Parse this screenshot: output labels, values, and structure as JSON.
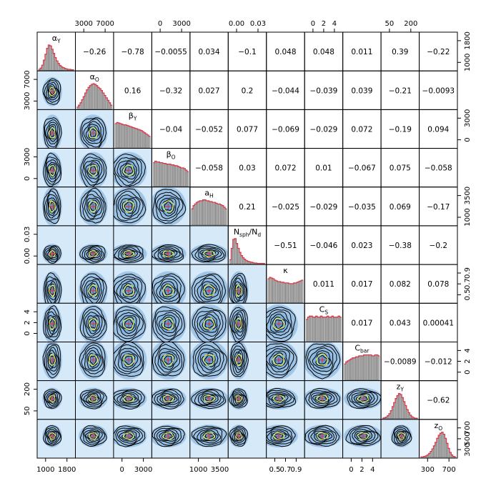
{
  "chart_data": {
    "type": "pairs-matrix",
    "variables": [
      {
        "key": "alpha_Y",
        "sym": "α",
        "sub": "Y"
      },
      {
        "key": "alpha_O",
        "sym": "α",
        "sub": "O"
      },
      {
        "key": "beta_Y",
        "sym": "β",
        "sub": "Y"
      },
      {
        "key": "beta_O",
        "sym": "β",
        "sub": "O"
      },
      {
        "key": "a_H",
        "sym": "a",
        "sub": "H"
      },
      {
        "key": "Nsph_Nd",
        "sym": "N",
        "sub": "sph",
        "tail": "/N",
        "sub2": "d"
      },
      {
        "key": "kappa",
        "sym": "κ",
        "sub": ""
      },
      {
        "key": "C_S",
        "sym": "C",
        "sub": "S"
      },
      {
        "key": "C_bar",
        "sym": "C",
        "sub": "bar"
      },
      {
        "key": "z_Y",
        "sym": "z",
        "sub": "Y"
      },
      {
        "key": "z_O",
        "sym": "z",
        "sub": "O"
      }
    ],
    "top_axis": [
      {
        "col": 1,
        "ticks": [
          "3000",
          "7000"
        ]
      },
      {
        "col": 3,
        "ticks": [
          "0",
          "3000"
        ]
      },
      {
        "col": 5,
        "ticks": [
          "0.00",
          "0.03"
        ]
      },
      {
        "col": 7,
        "ticks": [
          "0",
          "2",
          "4"
        ]
      },
      {
        "col": 9,
        "ticks": [
          "50",
          "200"
        ]
      }
    ],
    "bottom_axis": [
      {
        "col": 0,
        "ticks": [
          "1000",
          "1800"
        ]
      },
      {
        "col": 2,
        "ticks": [
          "0",
          "3000"
        ]
      },
      {
        "col": 4,
        "ticks": [
          "1000",
          "3500"
        ]
      },
      {
        "col": 6,
        "ticks": [
          "0.5",
          "0.7",
          "0.9"
        ]
      },
      {
        "col": 8,
        "ticks": [
          "0",
          "2",
          "4"
        ]
      },
      {
        "col": 10,
        "ticks": [
          "300",
          "700"
        ]
      }
    ],
    "left_axis": [
      {
        "row": 1,
        "ticks": [
          "7000",
          "3000"
        ]
      },
      {
        "row": 3,
        "ticks": [
          "3000",
          "0"
        ]
      },
      {
        "row": 5,
        "ticks": [
          "0.03",
          "0.00"
        ]
      },
      {
        "row": 7,
        "ticks": [
          "4",
          "2",
          "0"
        ]
      },
      {
        "row": 9,
        "ticks": [
          "200",
          "50"
        ]
      }
    ],
    "right_axis": [
      {
        "row": 0,
        "ticks": [
          "1800",
          "1000"
        ]
      },
      {
        "row": 2,
        "ticks": [
          "3000",
          "0"
        ]
      },
      {
        "row": 4,
        "ticks": [
          "3500",
          "1000"
        ]
      },
      {
        "row": 6,
        "ticks": [
          "0.9",
          "0.7",
          "0.5"
        ]
      },
      {
        "row": 8,
        "ticks": [
          "4",
          "2",
          "0"
        ]
      },
      {
        "row": 10,
        "ticks": [
          "700",
          "500",
          "300"
        ]
      }
    ],
    "correlations": [
      [
        null,
        "−0.26",
        "−0.78",
        "−0.0055",
        "0.034",
        "−0.1",
        "0.048",
        "0.048",
        "0.011",
        "0.39",
        "−0.22"
      ],
      [
        null,
        null,
        "0.16",
        "−0.32",
        "0.027",
        "0.2",
        "−0.044",
        "−0.039",
        "0.039",
        "−0.21",
        "−0.0093"
      ],
      [
        null,
        null,
        null,
        "−0.04",
        "−0.052",
        "0.077",
        "−0.069",
        "−0.029",
        "0.072",
        "−0.19",
        "0.094"
      ],
      [
        null,
        null,
        null,
        null,
        "−0.058",
        "0.03",
        "0.072",
        "0.01",
        "−0.067",
        "0.075",
        "−0.058"
      ],
      [
        null,
        null,
        null,
        null,
        null,
        "0.21",
        "−0.025",
        "−0.029",
        "−0.035",
        "0.069",
        "−0.17"
      ],
      [
        null,
        null,
        null,
        null,
        null,
        null,
        "−0.51",
        "−0.046",
        "0.023",
        "−0.38",
        "−0.2"
      ],
      [
        null,
        null,
        null,
        null,
        null,
        null,
        null,
        "0.011",
        "0.017",
        "0.082",
        "0.078"
      ],
      [
        null,
        null,
        null,
        null,
        null,
        null,
        null,
        null,
        "0.017",
        "0.043",
        "0.00041"
      ],
      [
        null,
        null,
        null,
        null,
        null,
        null,
        null,
        null,
        null,
        "−0.0089",
        "−0.012"
      ],
      [
        null,
        null,
        null,
        null,
        null,
        null,
        null,
        null,
        null,
        null,
        "−0.62"
      ],
      [
        null,
        null,
        null,
        null,
        null,
        null,
        null,
        null,
        null,
        null,
        null
      ]
    ],
    "histograms": {
      "alpha_Y": [
        2,
        5,
        12,
        24,
        38,
        52,
        60,
        58,
        50,
        40,
        30,
        22,
        16,
        11,
        8,
        6,
        4,
        3,
        2,
        2,
        1,
        1
      ],
      "alpha_O": [
        3,
        6,
        10,
        15,
        20,
        26,
        31,
        35,
        38,
        40,
        41,
        40,
        38,
        35,
        33,
        30,
        26,
        22,
        18,
        14,
        10,
        6
      ],
      "beta_Y": [
        42,
        44,
        43,
        42,
        41,
        40,
        40,
        39,
        38,
        37,
        36,
        35,
        34,
        33,
        32,
        31,
        30,
        28,
        26,
        24,
        22,
        20
      ],
      "beta_O": [
        32,
        34,
        33,
        33,
        32,
        32,
        31,
        31,
        30,
        30,
        30,
        29,
        29,
        28,
        28,
        27,
        26,
        25,
        25,
        24,
        22,
        20
      ],
      "a_H": [
        20,
        24,
        26,
        28,
        29,
        30,
        30,
        31,
        31,
        30,
        30,
        29,
        29,
        28,
        28,
        27,
        26,
        26,
        25,
        24,
        22,
        20
      ],
      "Nsph_Nd": [
        10,
        38,
        60,
        62,
        50,
        38,
        28,
        20,
        15,
        11,
        8,
        6,
        5,
        4,
        3,
        2,
        2,
        1,
        1,
        1,
        1,
        1
      ],
      "kappa": [
        34,
        36,
        35,
        34,
        32,
        31,
        30,
        30,
        29,
        29,
        28,
        28,
        28,
        27,
        27,
        27,
        28,
        28,
        29,
        30,
        31,
        32
      ],
      "C_S": [
        20,
        22,
        23,
        23,
        22,
        22,
        23,
        22,
        22,
        23,
        22,
        22,
        22,
        23,
        22,
        22,
        23,
        22,
        22,
        22,
        23,
        22
      ],
      "C_bar": [
        16,
        18,
        19,
        20,
        21,
        22,
        22,
        23,
        23,
        24,
        24,
        24,
        25,
        25,
        25,
        25,
        25,
        24,
        24,
        25,
        25,
        24
      ],
      "z_Y": [
        1,
        2,
        3,
        6,
        10,
        16,
        24,
        32,
        40,
        46,
        50,
        48,
        42,
        34,
        26,
        18,
        12,
        7,
        4,
        2,
        1,
        1
      ],
      "z_O": [
        1,
        1,
        2,
        3,
        5,
        8,
        12,
        17,
        23,
        30,
        38,
        44,
        48,
        50,
        46,
        38,
        28,
        18,
        10,
        5,
        2,
        1
      ]
    },
    "peaks": {
      "alpha_Y": {
        "m": 0.35,
        "s": 0.12
      },
      "alpha_O": {
        "m": 0.45,
        "s": 0.22
      },
      "beta_Y": {
        "m": 0.35,
        "s": 0.3
      },
      "beta_O": {
        "m": 0.4,
        "s": 0.3
      },
      "a_H": {
        "m": 0.5,
        "s": 0.32
      },
      "Nsph_Nd": {
        "m": 0.18,
        "s": 0.12
      },
      "kappa": {
        "m": 0.25,
        "s": 0.32
      },
      "C_S": {
        "m": 0.45,
        "s": 0.35
      },
      "C_bar": {
        "m": 0.55,
        "s": 0.33
      },
      "z_Y": {
        "m": 0.55,
        "s": 0.14
      },
      "z_O": {
        "m": 0.6,
        "s": 0.15
      }
    },
    "colors": {
      "panel_bg": "#d6e9f9",
      "density": "#3f86c8",
      "contour": "#000000",
      "inner_contour": "#e6f05a",
      "mode_marker": "#d63a4a",
      "hist_line": "#d63a4a",
      "hist_bar": "#b5b5b5"
    }
  }
}
